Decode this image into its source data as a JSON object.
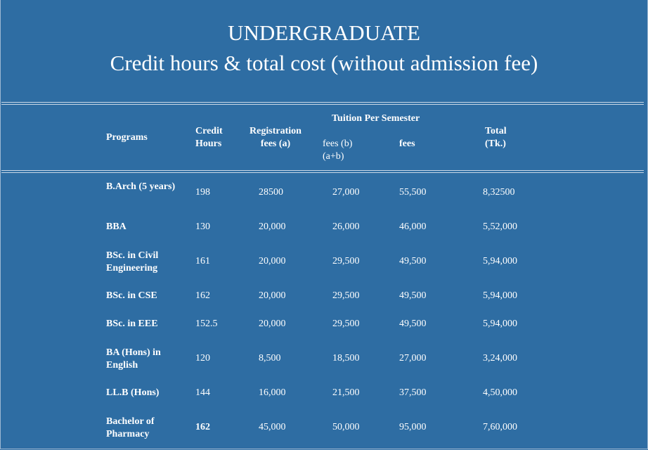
{
  "title_line1": "UNDERGRADUATE",
  "title_line2": "Credit hours & total cost (without admission fee)",
  "headers": {
    "programs": "Programs",
    "credit": "Credit Hours",
    "registration": "Registration fees (a)",
    "tuition_group": "Tuition Per Semester",
    "fees_b": "fees (b) (a+b)",
    "fees": "fees",
    "total": "Total (Tk.)"
  },
  "rows": [
    {
      "program": "B.Arch (5 years)",
      "credit": "198",
      "registration": "28500",
      "fees_b": "27,000",
      "fees": "55,500",
      "total": "8,32500"
    },
    {
      "program": "BBA",
      "credit": "130",
      "registration": "20,000",
      "fees_b": "26,000",
      "fees": "46,000",
      "total": "5,52,000"
    },
    {
      "program": "BSc. in Civil Engineering",
      "credit": "161",
      "registration": "20,000",
      "fees_b": "29,500",
      "fees": "49,500",
      "total": "5,94,000"
    },
    {
      "program": "BSc. in CSE",
      "credit": "162",
      "registration": "20,000",
      "fees_b": "29,500",
      "fees": "49,500",
      "total": "5,94,000"
    },
    {
      "program": "BSc. in EEE",
      "credit": "152.5",
      "registration": "20,000",
      "fees_b": "29,500",
      "fees": "49,500",
      "total": "5,94,000"
    },
    {
      "program": "BA (Hons) in English",
      "credit": "120",
      "registration": "8,500",
      "fees_b": "18,500",
      "fees": "27,000",
      "total": "3,24,000"
    },
    {
      "program": "LL.B (Hons)",
      "credit": "144",
      "registration": "16,000",
      "fees_b": "21,500",
      "fees": "37,500",
      "total": "4,50,000"
    },
    {
      "program": "Bachelor of Pharmacy",
      "credit": "162",
      "registration": "45,000",
      "fees_b": "50,000",
      "fees": "95,000",
      "total": "7,60,000"
    }
  ]
}
